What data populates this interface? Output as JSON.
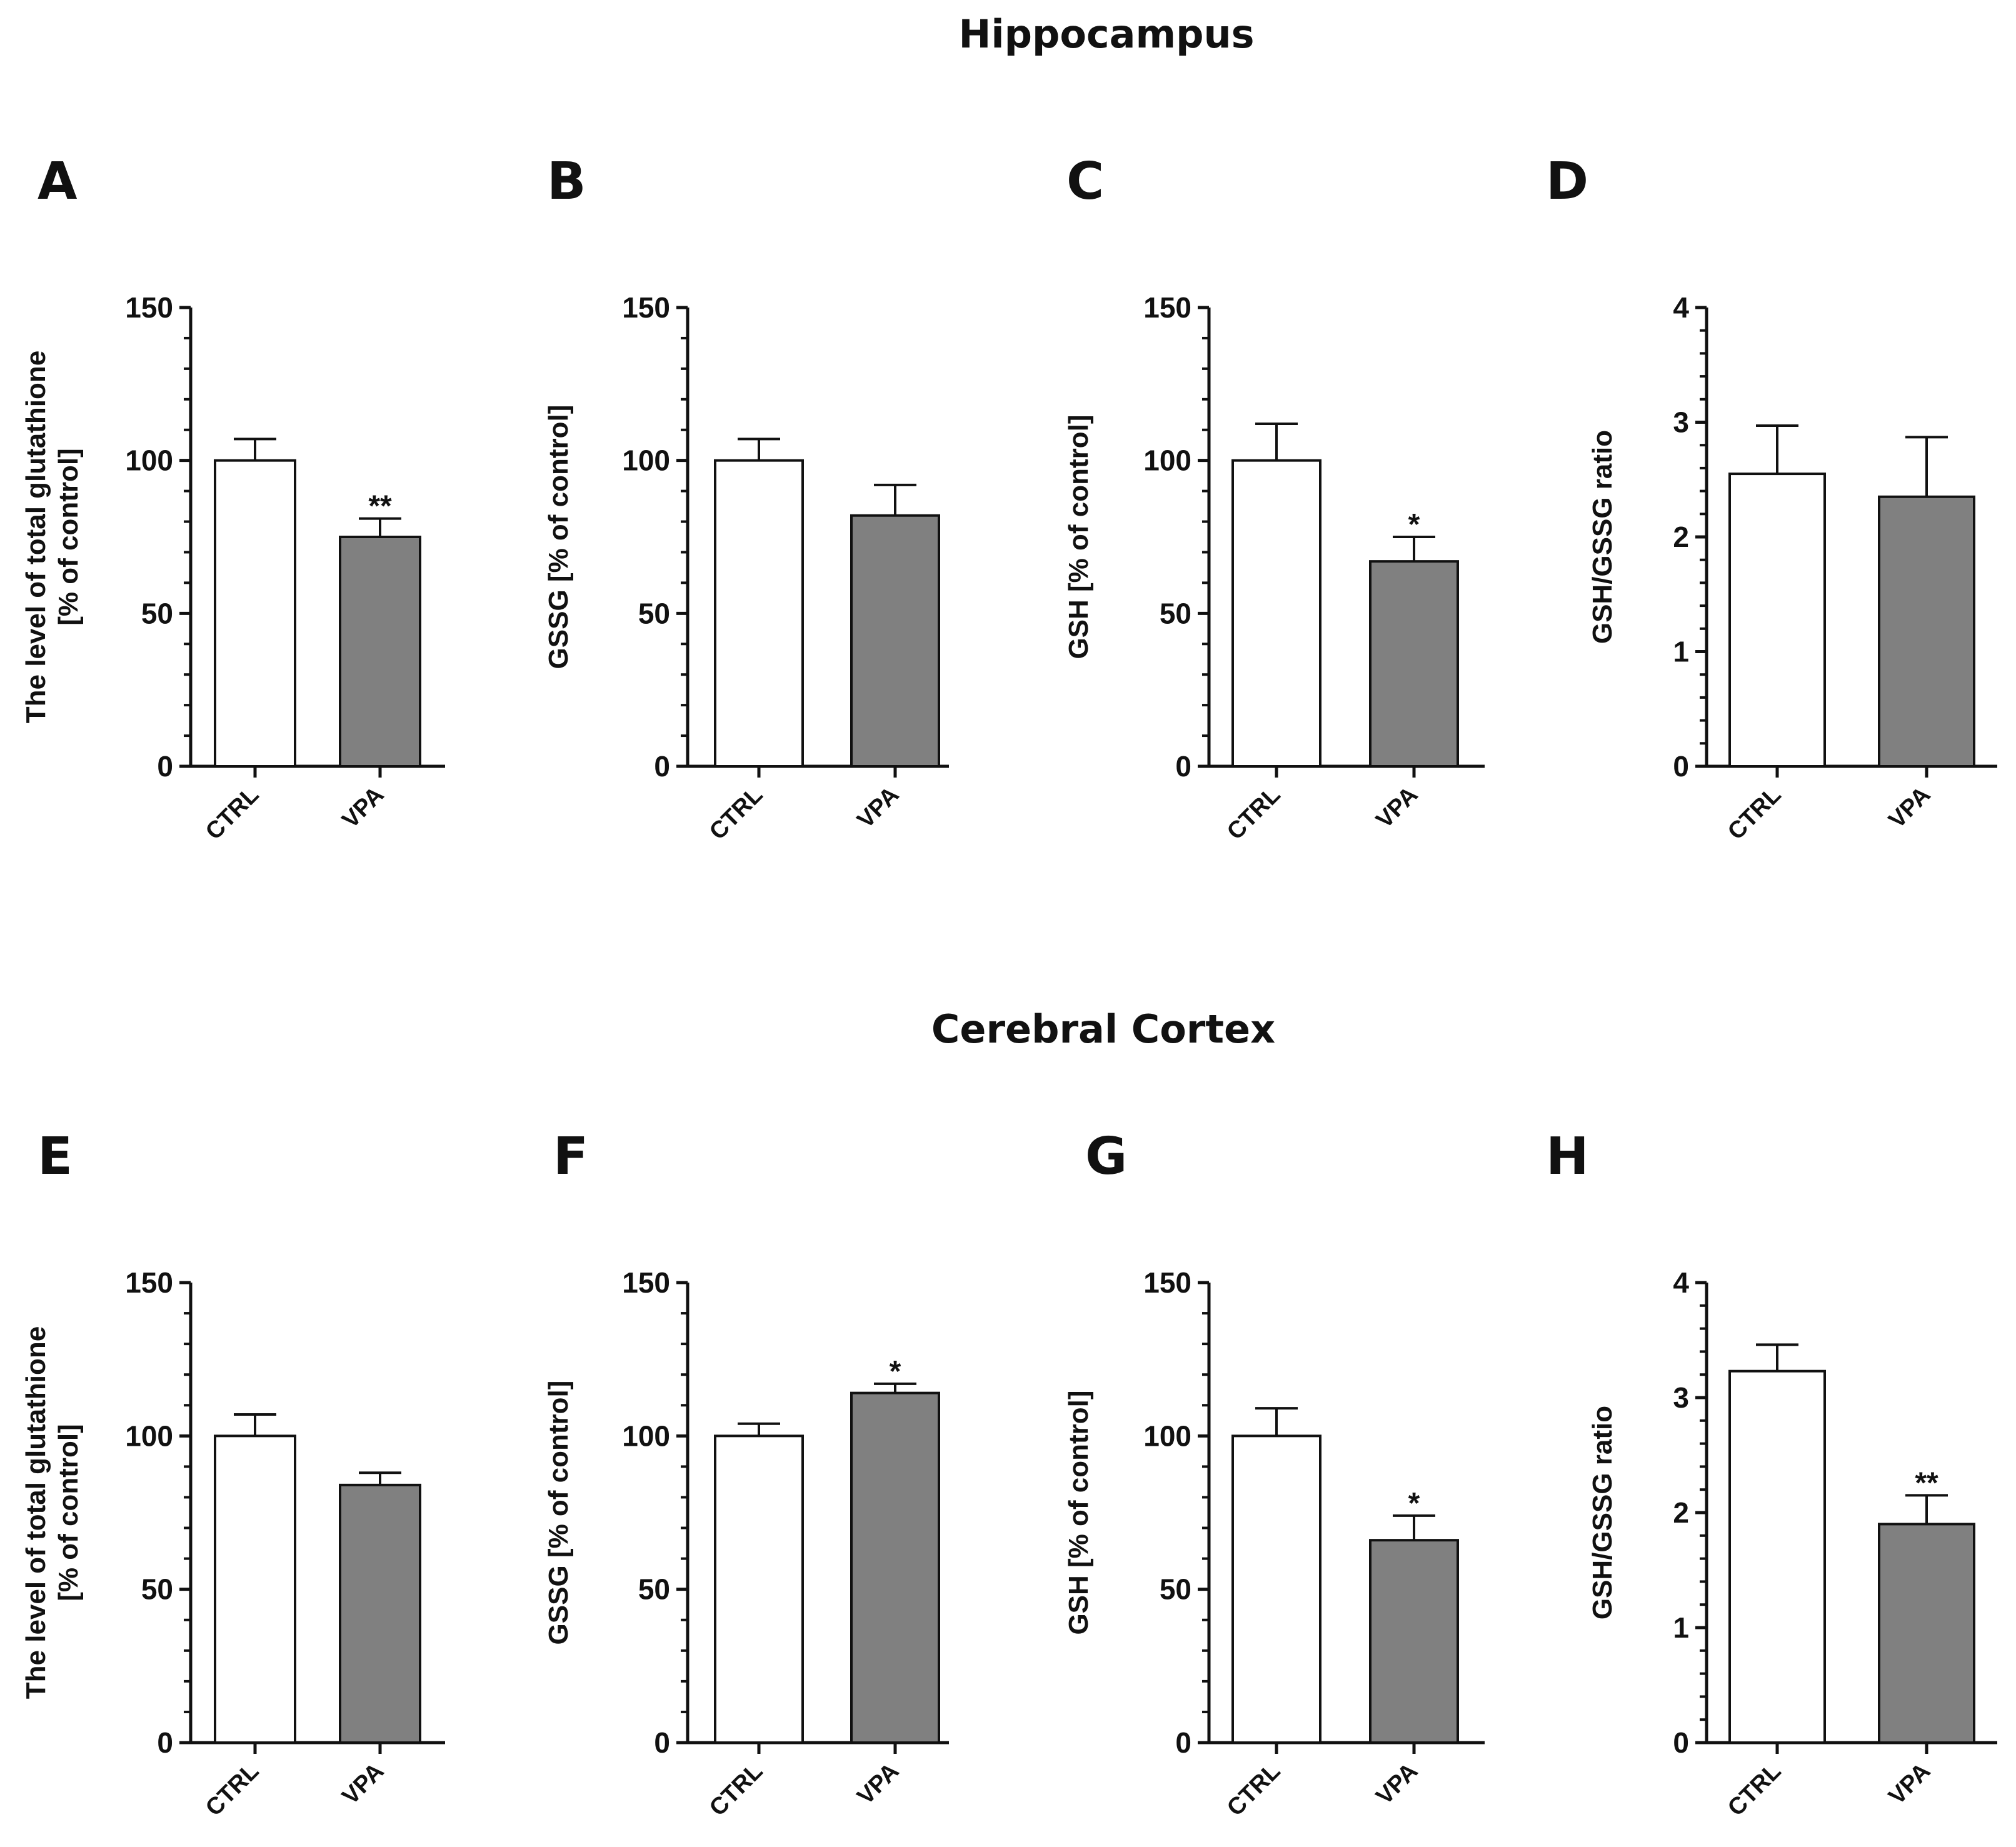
{
  "sections": [
    {
      "title": "Hippocampus"
    },
    {
      "title": "Cerebral Cortex"
    }
  ],
  "colors": {
    "ctrl_fill": "#ffffff",
    "vpa_fill": "#808080",
    "stroke": "#111111"
  },
  "chart_data": [
    {
      "type": "bar",
      "panel": "A",
      "ylabel_lines": [
        "The level of total glutathione",
        "[% of control]"
      ],
      "ylim": [
        0,
        150
      ],
      "yticks": [
        0,
        50,
        100,
        150
      ],
      "minor_per_major": 5,
      "categories": [
        "CTRL",
        "VPA"
      ],
      "values": [
        100,
        75
      ],
      "errors": [
        7,
        6
      ],
      "significance": [
        "",
        "**"
      ]
    },
    {
      "type": "bar",
      "panel": "B",
      "ylabel_lines": [
        "GSSG [% of control]"
      ],
      "ylim": [
        0,
        150
      ],
      "yticks": [
        0,
        50,
        100,
        150
      ],
      "minor_per_major": 5,
      "categories": [
        "CTRL",
        "VPA"
      ],
      "values": [
        100,
        82
      ],
      "errors": [
        7,
        10
      ],
      "significance": [
        "",
        ""
      ]
    },
    {
      "type": "bar",
      "panel": "C",
      "ylabel_lines": [
        "GSH [% of control]"
      ],
      "ylim": [
        0,
        150
      ],
      "yticks": [
        0,
        50,
        100,
        150
      ],
      "minor_per_major": 5,
      "categories": [
        "CTRL",
        "VPA"
      ],
      "values": [
        100,
        67
      ],
      "errors": [
        12,
        8
      ],
      "significance": [
        "",
        "*"
      ]
    },
    {
      "type": "bar",
      "panel": "D",
      "ylabel_lines": [
        "GSH/GSSG ratio"
      ],
      "ylim": [
        0,
        4
      ],
      "yticks": [
        0,
        1,
        2,
        3,
        4
      ],
      "minor_per_major": 5,
      "categories": [
        "CTRL",
        "VPA"
      ],
      "values": [
        2.55,
        2.35
      ],
      "errors": [
        0.42,
        0.52
      ],
      "significance": [
        "",
        ""
      ]
    },
    {
      "type": "bar",
      "panel": "E",
      "ylabel_lines": [
        "The level of total glutathione",
        "[% of control]"
      ],
      "ylim": [
        0,
        150
      ],
      "yticks": [
        0,
        50,
        100,
        150
      ],
      "minor_per_major": 5,
      "categories": [
        "CTRL",
        "VPA"
      ],
      "values": [
        100,
        84
      ],
      "errors": [
        7,
        4
      ],
      "significance": [
        "",
        ""
      ]
    },
    {
      "type": "bar",
      "panel": "F",
      "ylabel_lines": [
        "GSSG [% of control]"
      ],
      "ylim": [
        0,
        150
      ],
      "yticks": [
        0,
        50,
        100,
        150
      ],
      "minor_per_major": 5,
      "categories": [
        "CTRL",
        "VPA"
      ],
      "values": [
        100,
        114
      ],
      "errors": [
        4,
        3
      ],
      "significance": [
        "",
        "*"
      ]
    },
    {
      "type": "bar",
      "panel": "G",
      "ylabel_lines": [
        "GSH [% of control]"
      ],
      "ylim": [
        0,
        150
      ],
      "yticks": [
        0,
        50,
        100,
        150
      ],
      "minor_per_major": 5,
      "categories": [
        "CTRL",
        "VPA"
      ],
      "values": [
        100,
        66
      ],
      "errors": [
        9,
        8
      ],
      "significance": [
        "",
        "*"
      ]
    },
    {
      "type": "bar",
      "panel": "H",
      "ylabel_lines": [
        "GSH/GSSG ratio"
      ],
      "ylim": [
        0,
        4
      ],
      "yticks": [
        0,
        1,
        2,
        3,
        4
      ],
      "minor_per_major": 5,
      "categories": [
        "CTRL",
        "VPA"
      ],
      "values": [
        3.23,
        1.9
      ],
      "errors": [
        0.23,
        0.25
      ],
      "significance": [
        "",
        "**"
      ]
    }
  ]
}
